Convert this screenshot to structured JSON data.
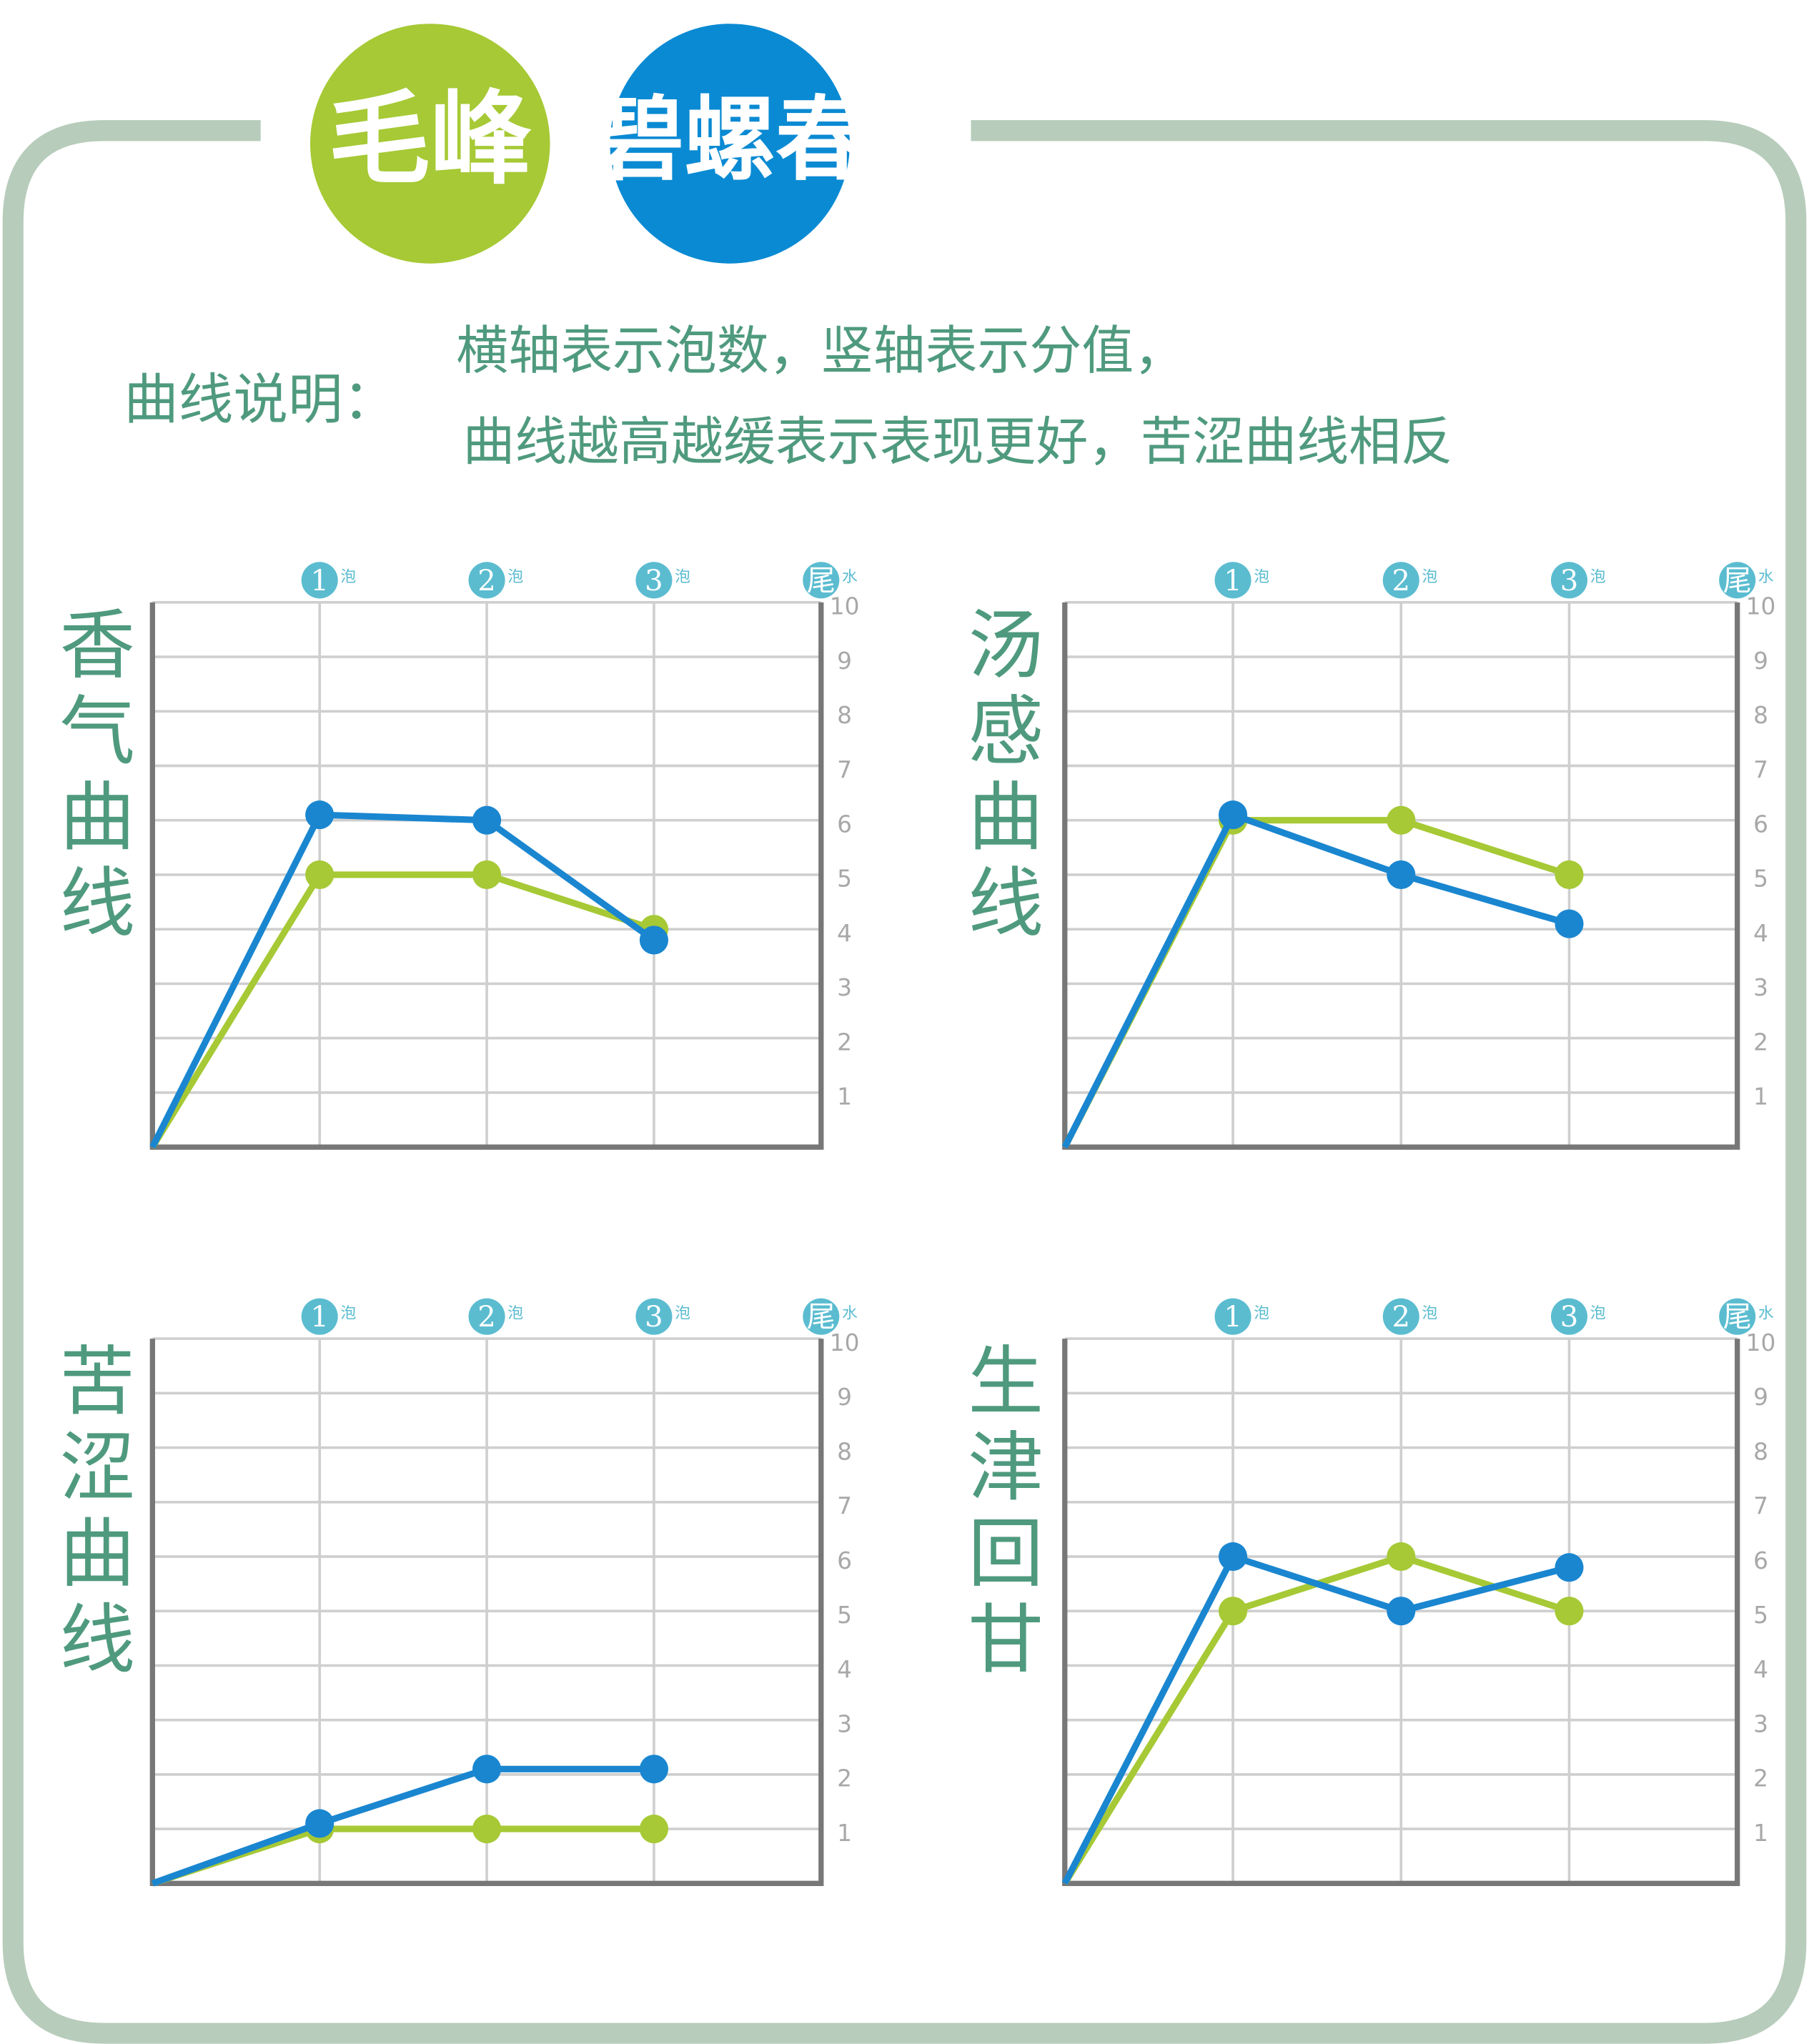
{
  "legend_badges": true,
  "note": {
    "label": "曲线说明：",
    "lines": [
      "横轴表示泡数，竖轴表示分值，",
      "曲线越高越缓表示表现更好，苦涩曲线相反"
    ]
  },
  "chart_data": [
    {
      "type": "line",
      "title": "香气曲线",
      "x": [
        0,
        1,
        2,
        3
      ],
      "xlim": [
        0,
        4
      ],
      "xticks": [
        1,
        2,
        3,
        {
          "value": 4,
          "label": "尾"
        }
      ],
      "xtick_notes": [
        "泡",
        "泡",
        "泡",
        "水"
      ],
      "ylim": [
        0,
        10
      ],
      "yticks": [
        1,
        2,
        3,
        4,
        5,
        6,
        7,
        8,
        9,
        10
      ],
      "grid": true,
      "series": [
        {
          "name": "毛峰",
          "color": "#a6c935",
          "values": [
            0,
            5,
            5,
            4
          ]
        },
        {
          "name": "碧螺春",
          "color": "#1a86d0",
          "values": [
            0,
            6.1,
            6,
            3.8
          ]
        }
      ]
    },
    {
      "type": "line",
      "title": "汤感曲线",
      "x": [
        0,
        1,
        2,
        3
      ],
      "xlim": [
        0,
        4
      ],
      "xticks": [
        1,
        2,
        3,
        {
          "value": 4,
          "label": "尾"
        }
      ],
      "xtick_notes": [
        "泡",
        "泡",
        "泡",
        "水"
      ],
      "ylim": [
        0,
        10
      ],
      "yticks": [
        1,
        2,
        3,
        4,
        5,
        6,
        7,
        8,
        9,
        10
      ],
      "grid": true,
      "series": [
        {
          "color": "#a6c935",
          "values": [
            0,
            6,
            6,
            5
          ]
        },
        {
          "color": "#1a86d0",
          "values": [
            0,
            6.1,
            5,
            4.1
          ]
        }
      ]
    },
    {
      "type": "line",
      "title": "苦涩曲线",
      "x": [
        0,
        1,
        2,
        3
      ],
      "xlim": [
        0,
        4
      ],
      "xticks": [
        1,
        2,
        3,
        {
          "value": 4,
          "label": "尾"
        }
      ],
      "xtick_notes": [
        "泡",
        "泡",
        "泡",
        "水"
      ],
      "ylim": [
        0,
        10
      ],
      "yticks": [
        1,
        2,
        3,
        4,
        5,
        6,
        7,
        8,
        9,
        10
      ],
      "grid": true,
      "series": [
        {
          "color": "#a6c935",
          "values": [
            0,
            1,
            1,
            1
          ]
        },
        {
          "color": "#1a86d0",
          "values": [
            0,
            1.1,
            2.1,
            2.1
          ]
        }
      ]
    },
    {
      "type": "line",
      "title": "生津回甘",
      "x": [
        0,
        1,
        2,
        3
      ],
      "xlim": [
        0,
        4
      ],
      "xticks": [
        1,
        2,
        3,
        {
          "value": 4,
          "label": "尾"
        }
      ],
      "xtick_notes": [
        "泡",
        "泡",
        "泡",
        "水"
      ],
      "ylim": [
        0,
        10
      ],
      "yticks": [
        1,
        2,
        3,
        4,
        5,
        6,
        7,
        8,
        9,
        10
      ],
      "grid": true,
      "series": [
        {
          "color": "#a6c935",
          "values": [
            0,
            5,
            6,
            5
          ]
        },
        {
          "color": "#1a86d0",
          "values": [
            0,
            6,
            5,
            5.8
          ]
        }
      ]
    }
  ]
}
